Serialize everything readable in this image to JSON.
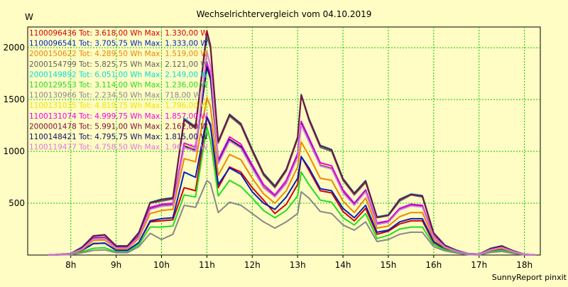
{
  "chart_data": {
    "type": "line",
    "title": "Wechselrichtervergleich vom 04.10.2019",
    "ylabel": "W",
    "xlabel": "",
    "footer": "SunnyReport pinxit",
    "xlim": [
      7.05,
      18.35
    ],
    "ylim": [
      0,
      2200
    ],
    "yticks": [
      500,
      1000,
      1500,
      2000
    ],
    "xticks": [
      8,
      9,
      10,
      11,
      12,
      13,
      14,
      15,
      16,
      17,
      18
    ],
    "xtick_labels": [
      "8h",
      "9h",
      "10h",
      "11h",
      "12h",
      "13h",
      "14h",
      "15h",
      "16h",
      "17h",
      "18h"
    ],
    "grid": true,
    "legend_position": "top-left inside plot",
    "x": [
      7.5,
      8.0,
      8.25,
      8.5,
      8.75,
      9.0,
      9.25,
      9.5,
      9.75,
      10.0,
      10.25,
      10.5,
      10.75,
      11.0,
      11.08,
      11.25,
      11.5,
      11.75,
      12.0,
      12.25,
      12.5,
      12.75,
      13.0,
      13.08,
      13.25,
      13.5,
      13.75,
      14.0,
      14.25,
      14.5,
      14.75,
      15.0,
      15.25,
      15.5,
      15.75,
      16.0,
      16.25,
      16.5,
      16.75,
      17.0,
      17.25,
      17.5,
      17.75,
      18.0,
      18.25
    ],
    "series": [
      {
        "name": "1100096436",
        "label": "1100096436 Tot: 3.618,00 Wh Max: 1.330,00 W",
        "color": "#d40000",
        "values": [
          0,
          8,
          45,
          110,
          115,
          45,
          45,
          120,
          320,
          330,
          340,
          650,
          620,
          1330,
          1240,
          650,
          850,
          800,
          650,
          530,
          400,
          490,
          680,
          950,
          820,
          620,
          600,
          420,
          330,
          450,
          200,
          230,
          300,
          330,
          330,
          120,
          60,
          30,
          8,
          5,
          40,
          55,
          25,
          5,
          0
        ]
      },
      {
        "name": "1100096541",
        "label": "1100096541 Tot: 3.705,75 Wh Max: 1.333,00 W",
        "color": "#0022bb",
        "values": [
          0,
          8,
          45,
          110,
          115,
          45,
          45,
          120,
          330,
          350,
          360,
          800,
          750,
          1333,
          1260,
          680,
          840,
          780,
          610,
          500,
          440,
          560,
          740,
          950,
          840,
          640,
          620,
          450,
          360,
          480,
          220,
          240,
          320,
          350,
          350,
          130,
          60,
          30,
          8,
          5,
          40,
          55,
          25,
          5,
          0
        ]
      },
      {
        "name": "2000150622",
        "label": "2000150622 Tot: 4.289,50 Wh Max: 1.519,00 W",
        "color": "#ee8800",
        "values": [
          0,
          10,
          50,
          140,
          145,
          60,
          60,
          160,
          400,
          430,
          440,
          930,
          900,
          1519,
          1430,
          770,
          970,
          920,
          740,
          590,
          500,
          620,
          850,
          1090,
          960,
          740,
          720,
          520,
          410,
          550,
          260,
          280,
          370,
          410,
          410,
          155,
          70,
          35,
          10,
          5,
          45,
          65,
          30,
          5,
          0
        ]
      },
      {
        "name": "2000154799",
        "label": "2000154799 Tot: 5.825,75 Wh Max: 2.121,00 W",
        "color": "#606060",
        "values": [
          0,
          14,
          70,
          180,
          190,
          80,
          80,
          210,
          500,
          520,
          540,
          1300,
          1220,
          2121,
          1990,
          1080,
          1340,
          1250,
          1000,
          770,
          650,
          810,
          1120,
          1540,
          1300,
          1040,
          1000,
          720,
          580,
          700,
          360,
          380,
          520,
          580,
          560,
          210,
          90,
          45,
          14,
          8,
          60,
          85,
          40,
          7,
          0
        ]
      },
      {
        "name": "2000149892",
        "label": "2000149892 Tot: 6.051,00 Wh Max: 2.149,00 W",
        "color": "#00dddd",
        "values": [
          0,
          14,
          80,
          185,
          195,
          90,
          90,
          220,
          510,
          540,
          555,
          1320,
          1240,
          2149,
          2010,
          1100,
          1360,
          1270,
          1020,
          790,
          670,
          830,
          1140,
          1550,
          1320,
          1060,
          1020,
          740,
          600,
          720,
          370,
          390,
          540,
          590,
          575,
          215,
          95,
          48,
          15,
          8,
          65,
          90,
          42,
          8,
          0
        ]
      },
      {
        "name": "1100129553",
        "label": "1100129553 Tot: 3.114,00 Wh Max: 1.236,00 W",
        "color": "#22dd22",
        "values": [
          0,
          5,
          30,
          65,
          70,
          30,
          30,
          100,
          270,
          270,
          280,
          580,
          560,
          1236,
          1100,
          570,
          720,
          660,
          550,
          430,
          360,
          430,
          570,
          800,
          680,
          530,
          510,
          360,
          290,
          400,
          160,
          190,
          250,
          270,
          270,
          100,
          50,
          25,
          5,
          3,
          30,
          45,
          20,
          3,
          0
        ]
      },
      {
        "name": "1100130966",
        "label": "1100130966 Tot: 2.234,50 Wh Max: 718,00 W",
        "color": "#888888",
        "values": [
          0,
          4,
          22,
          45,
          50,
          22,
          22,
          80,
          210,
          150,
          200,
          480,
          460,
          718,
          690,
          410,
          510,
          480,
          400,
          320,
          260,
          320,
          400,
          610,
          550,
          420,
          400,
          290,
          240,
          320,
          130,
          150,
          200,
          220,
          220,
          80,
          40,
          20,
          4,
          2,
          25,
          35,
          15,
          2,
          0
        ]
      },
      {
        "name": "1100131035",
        "label": "1100131035 Tot: 4.819,75 Wh Max: 1.796,00 W",
        "color": "#e8e800",
        "values": [
          0,
          12,
          60,
          160,
          165,
          70,
          70,
          180,
          450,
          480,
          490,
          1060,
          1020,
          1796,
          1690,
          900,
          1120,
          1050,
          850,
          660,
          570,
          700,
          960,
          1270,
          1110,
          870,
          840,
          610,
          490,
          620,
          300,
          320,
          440,
          480,
          470,
          180,
          80,
          40,
          12,
          6,
          52,
          75,
          35,
          6,
          0
        ]
      },
      {
        "name": "1100131074",
        "label": "1100131074 Tot: 4.999,75 Wh Max: 1.857,00 W",
        "color": "#ee00ee",
        "values": [
          0,
          12,
          60,
          165,
          170,
          72,
          72,
          185,
          460,
          490,
          500,
          1080,
          1040,
          1857,
          1740,
          920,
          1140,
          1070,
          870,
          680,
          580,
          720,
          980,
          1290,
          1130,
          890,
          860,
          630,
          500,
          630,
          310,
          330,
          450,
          490,
          480,
          185,
          82,
          41,
          12,
          6,
          54,
          77,
          36,
          6,
          0
        ]
      },
      {
        "name": "2000001478",
        "label": "2000001478 Tot: 5.991,00 Wh Max: 2.162,00 W",
        "color": "#7a0e3c",
        "values": [
          0,
          14,
          75,
          185,
          195,
          88,
          88,
          215,
          505,
          535,
          550,
          1310,
          1235,
          2162,
          2020,
          1095,
          1355,
          1265,
          1015,
          785,
          665,
          825,
          1135,
          1545,
          1315,
          1055,
          1015,
          735,
          595,
          715,
          365,
          385,
          535,
          585,
          570,
          212,
          92,
          46,
          14,
          8,
          62,
          88,
          41,
          7,
          0
        ]
      },
      {
        "name": "1100148421",
        "label": "1100148421 Tot: 4.795,75 Wh Max: 1.815,00 W",
        "color": "#101066",
        "values": [
          0,
          12,
          60,
          158,
          163,
          70,
          70,
          180,
          445,
          475,
          485,
          1050,
          1010,
          1815,
          1700,
          895,
          1115,
          1045,
          845,
          655,
          565,
          695,
          955,
          1265,
          1105,
          865,
          835,
          605,
          485,
          615,
          298,
          318,
          438,
          478,
          468,
          178,
          79,
          39,
          12,
          6,
          52,
          74,
          35,
          6,
          0
        ]
      },
      {
        "name": "1100119477",
        "label": "1100119477 Tot: 4.758,50 Wh Max: 1.963,00 W",
        "color": "#dd77dd",
        "values": [
          0,
          12,
          58,
          155,
          160,
          68,
          68,
          175,
          440,
          470,
          480,
          1040,
          1000,
          1963,
          1820,
          880,
          1100,
          1030,
          835,
          650,
          560,
          690,
          945,
          1255,
          1095,
          860,
          830,
          600,
          480,
          610,
          295,
          315,
          435,
          475,
          465,
          176,
          78,
          39,
          12,
          6,
          51,
          73,
          34,
          6,
          0
        ]
      }
    ]
  }
}
